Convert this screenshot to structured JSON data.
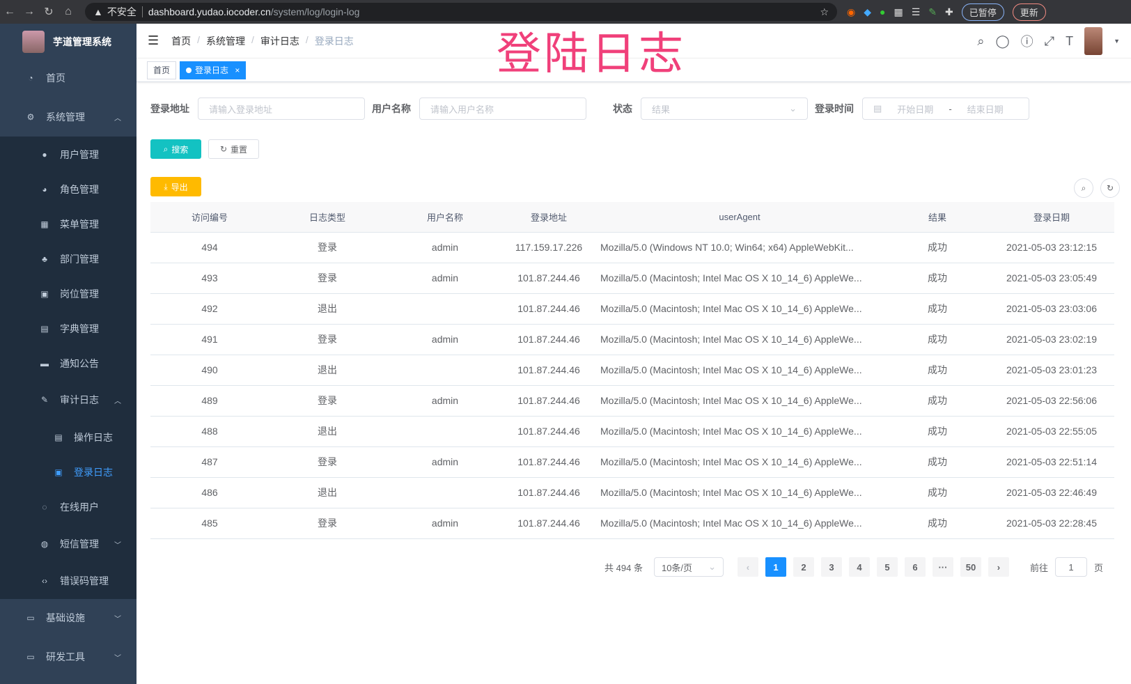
{
  "browser": {
    "security": "不安全",
    "host": "dashboard.yudao.iocoder.cn",
    "path": "/system/log/login-log",
    "paused": "已暂停",
    "update": "更新"
  },
  "overlay_title": "登陆日志",
  "sidebar": {
    "title": "芋道管理系统",
    "items": [
      {
        "label": "首页",
        "icon": "dashboard-icon"
      },
      {
        "label": "系统管理",
        "icon": "gear-icon",
        "expanded": true
      },
      {
        "label": "用户管理",
        "icon": "user-icon"
      },
      {
        "label": "角色管理",
        "icon": "peoples-icon"
      },
      {
        "label": "菜单管理",
        "icon": "tree-table-icon"
      },
      {
        "label": "部门管理",
        "icon": "tree-icon"
      },
      {
        "label": "岗位管理",
        "icon": "post-icon"
      },
      {
        "label": "字典管理",
        "icon": "dict-icon"
      },
      {
        "label": "通知公告",
        "icon": "message-icon"
      },
      {
        "label": "审计日志",
        "icon": "log-icon",
        "expanded": true
      },
      {
        "label": "操作日志",
        "icon": "form-icon"
      },
      {
        "label": "登录日志",
        "icon": "logininfor-icon",
        "active": true
      },
      {
        "label": "在线用户",
        "icon": "online-icon"
      },
      {
        "label": "短信管理",
        "icon": "validCode-icon"
      },
      {
        "label": "错误码管理",
        "icon": "code-icon"
      },
      {
        "label": "基础设施",
        "icon": "monitor-icon"
      },
      {
        "label": "研发工具",
        "icon": "tool-icon"
      }
    ]
  },
  "breadcrumb": [
    "首页",
    "系统管理",
    "审计日志",
    "登录日志"
  ],
  "tags": [
    {
      "label": "首页"
    },
    {
      "label": "登录日志",
      "active": true
    }
  ],
  "filters": {
    "ip_label": "登录地址",
    "ip_placeholder": "请输入登录地址",
    "user_label": "用户名称",
    "user_placeholder": "请输入用户名称",
    "status_label": "状态",
    "status_placeholder": "结果",
    "time_label": "登录时间",
    "start_placeholder": "开始日期",
    "end_placeholder": "结束日期",
    "range_sep": "-"
  },
  "buttons": {
    "search": "搜索",
    "reset": "重置",
    "export": "导出"
  },
  "table": {
    "headers": [
      "访问编号",
      "日志类型",
      "用户名称",
      "登录地址",
      "userAgent",
      "结果",
      "登录日期"
    ],
    "rows": [
      [
        "494",
        "登录",
        "admin",
        "117.159.17.226",
        "Mozilla/5.0 (Windows NT 10.0; Win64; x64) AppleWebKit...",
        "成功",
        "2021-05-03 23:12:15"
      ],
      [
        "493",
        "登录",
        "admin",
        "101.87.244.46",
        "Mozilla/5.0 (Macintosh; Intel Mac OS X 10_14_6) AppleWe...",
        "成功",
        "2021-05-03 23:05:49"
      ],
      [
        "492",
        "退出",
        "",
        "101.87.244.46",
        "Mozilla/5.0 (Macintosh; Intel Mac OS X 10_14_6) AppleWe...",
        "成功",
        "2021-05-03 23:03:06"
      ],
      [
        "491",
        "登录",
        "admin",
        "101.87.244.46",
        "Mozilla/5.0 (Macintosh; Intel Mac OS X 10_14_6) AppleWe...",
        "成功",
        "2021-05-03 23:02:19"
      ],
      [
        "490",
        "退出",
        "",
        "101.87.244.46",
        "Mozilla/5.0 (Macintosh; Intel Mac OS X 10_14_6) AppleWe...",
        "成功",
        "2021-05-03 23:01:23"
      ],
      [
        "489",
        "登录",
        "admin",
        "101.87.244.46",
        "Mozilla/5.0 (Macintosh; Intel Mac OS X 10_14_6) AppleWe...",
        "成功",
        "2021-05-03 22:56:06"
      ],
      [
        "488",
        "退出",
        "",
        "101.87.244.46",
        "Mozilla/5.0 (Macintosh; Intel Mac OS X 10_14_6) AppleWe...",
        "成功",
        "2021-05-03 22:55:05"
      ],
      [
        "487",
        "登录",
        "admin",
        "101.87.244.46",
        "Mozilla/5.0 (Macintosh; Intel Mac OS X 10_14_6) AppleWe...",
        "成功",
        "2021-05-03 22:51:14"
      ],
      [
        "486",
        "退出",
        "",
        "101.87.244.46",
        "Mozilla/5.0 (Macintosh; Intel Mac OS X 10_14_6) AppleWe...",
        "成功",
        "2021-05-03 22:46:49"
      ],
      [
        "485",
        "登录",
        "admin",
        "101.87.244.46",
        "Mozilla/5.0 (Macintosh; Intel Mac OS X 10_14_6) AppleWe...",
        "成功",
        "2021-05-03 22:28:45"
      ]
    ]
  },
  "pagination": {
    "total": "共 494 条",
    "page_size": "10条/页",
    "pages": [
      "1",
      "2",
      "3",
      "4",
      "5",
      "6",
      "···",
      "50"
    ],
    "current": "1",
    "goto_label": "前往",
    "goto_value": "1",
    "goto_suffix": "页"
  },
  "colors": {
    "sidebar": "#304156",
    "submenu": "#1f2d3d",
    "primary": "#1890ff",
    "search": "#13c2c2",
    "export": "#ffba00",
    "overlay": "#f0407a"
  }
}
